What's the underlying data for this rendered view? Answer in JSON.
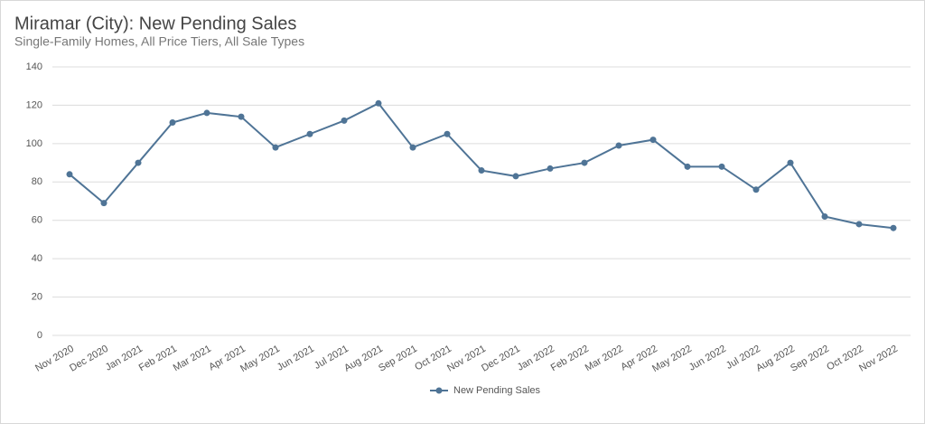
{
  "chart_data": {
    "type": "line",
    "title": "Miramar (City): New Pending Sales",
    "subtitle": "Single-Family Homes, All Price Tiers, All Sale Types",
    "categories": [
      "Nov 2020",
      "Dec 2020",
      "Jan 2021",
      "Feb 2021",
      "Mar 2021",
      "Apr 2021",
      "May 2021",
      "Jun 2021",
      "Jul 2021",
      "Aug 2021",
      "Sep 2021",
      "Oct 2021",
      "Nov 2021",
      "Dec 2021",
      "Jan 2022",
      "Feb 2022",
      "Mar 2022",
      "Apr 2022",
      "May 2022",
      "Jun 2022",
      "Jul 2022",
      "Aug 2022",
      "Sep 2022",
      "Oct 2022",
      "Nov 2022"
    ],
    "series": [
      {
        "name": "New Pending Sales",
        "color": "#4f7496",
        "values": [
          84,
          69,
          90,
          111,
          116,
          114,
          98,
          105,
          112,
          121,
          98,
          105,
          86,
          83,
          87,
          90,
          99,
          102,
          88,
          88,
          76,
          90,
          62,
          58,
          56
        ]
      }
    ],
    "ylim": [
      0,
      140
    ],
    "yticks": [
      0,
      20,
      40,
      60,
      80,
      100,
      120,
      140
    ],
    "grid": true,
    "legend": "bottom"
  }
}
